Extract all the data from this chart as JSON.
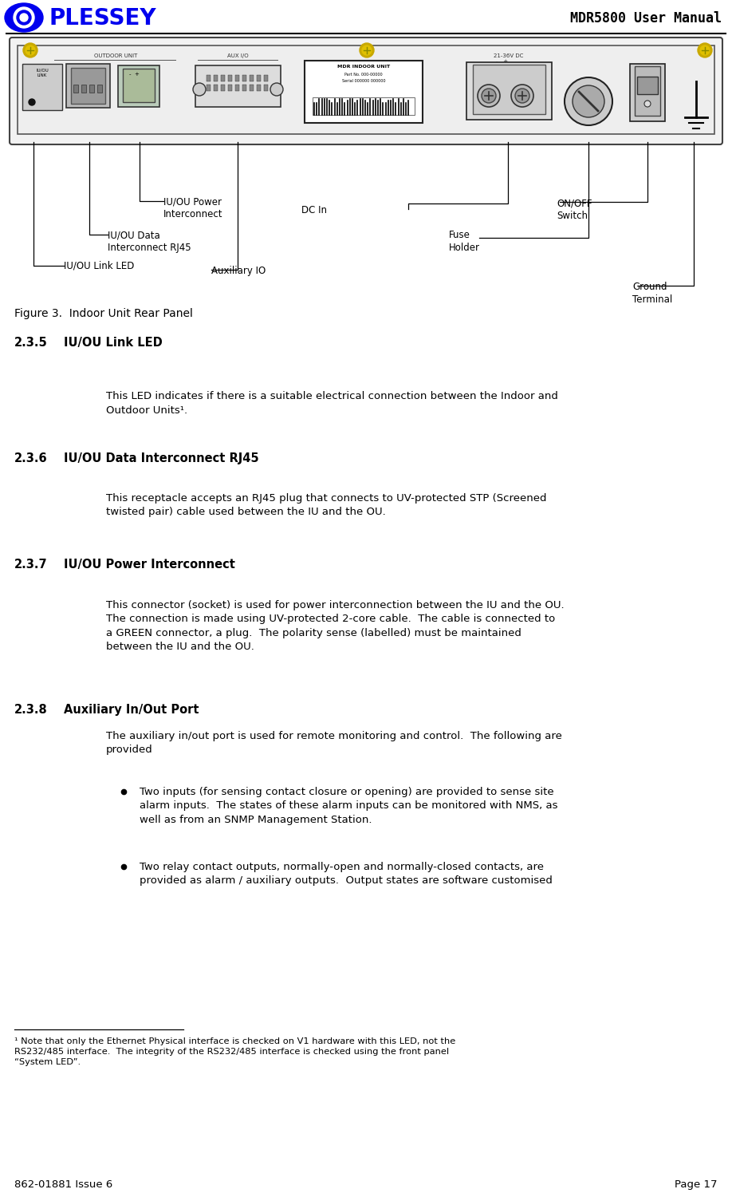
{
  "title_left": "PLESSEY",
  "title_right": "MDR5800 User Manual",
  "footer_left": "862-01881 Issue 6",
  "footer_right": "Page 17",
  "figure_caption": "Figure 3.  Indoor Unit Rear Panel",
  "sections": [
    {
      "number": "2.3.5",
      "heading": "IU/OU Link LED",
      "body": "This LED indicates if there is a suitable electrical connection between the Indoor and\nOutdoor Units¹."
    },
    {
      "number": "2.3.6",
      "heading": "IU/OU Data Interconnect RJ45",
      "body": "This receptacle accepts an RJ45 plug that connects to UV-protected STP (Screened\ntwisted pair) cable used between the IU and the OU."
    },
    {
      "number": "2.3.7",
      "heading": "IU/OU Power Interconnect",
      "body": "This connector (socket) is used for power interconnection between the IU and the OU.\nThe connection is made using UV-protected 2-core cable.  The cable is connected to\na GREEN connector, a plug.  The polarity sense (labelled) must be maintained\nbetween the IU and the OU."
    },
    {
      "number": "2.3.8",
      "heading": "Auxiliary In/Out Port",
      "body": "The auxiliary in/out port is used for remote monitoring and control.  The following are\nprovided"
    }
  ],
  "bullets": [
    "Two inputs (for sensing contact closure or opening) are provided to sense site\nalarm inputs.  The states of these alarm inputs can be monitored with NMS, as\nwell as from an SNMP Management Station.",
    "Two relay contact outputs, normally-open and normally-closed contacts, are\nprovided as alarm / auxiliary outputs.  Output states are software customised"
  ],
  "footnote": "¹ Note that only the Ethernet Physical interface is checked on V1 hardware with this LED, not the\nRS232/485 interface.  The integrity of the RS232/485 interface is checked using the front panel\n“System LED”.",
  "bg_color": "#ffffff",
  "text_color": "#000000",
  "plessey_color": "#0000ee"
}
